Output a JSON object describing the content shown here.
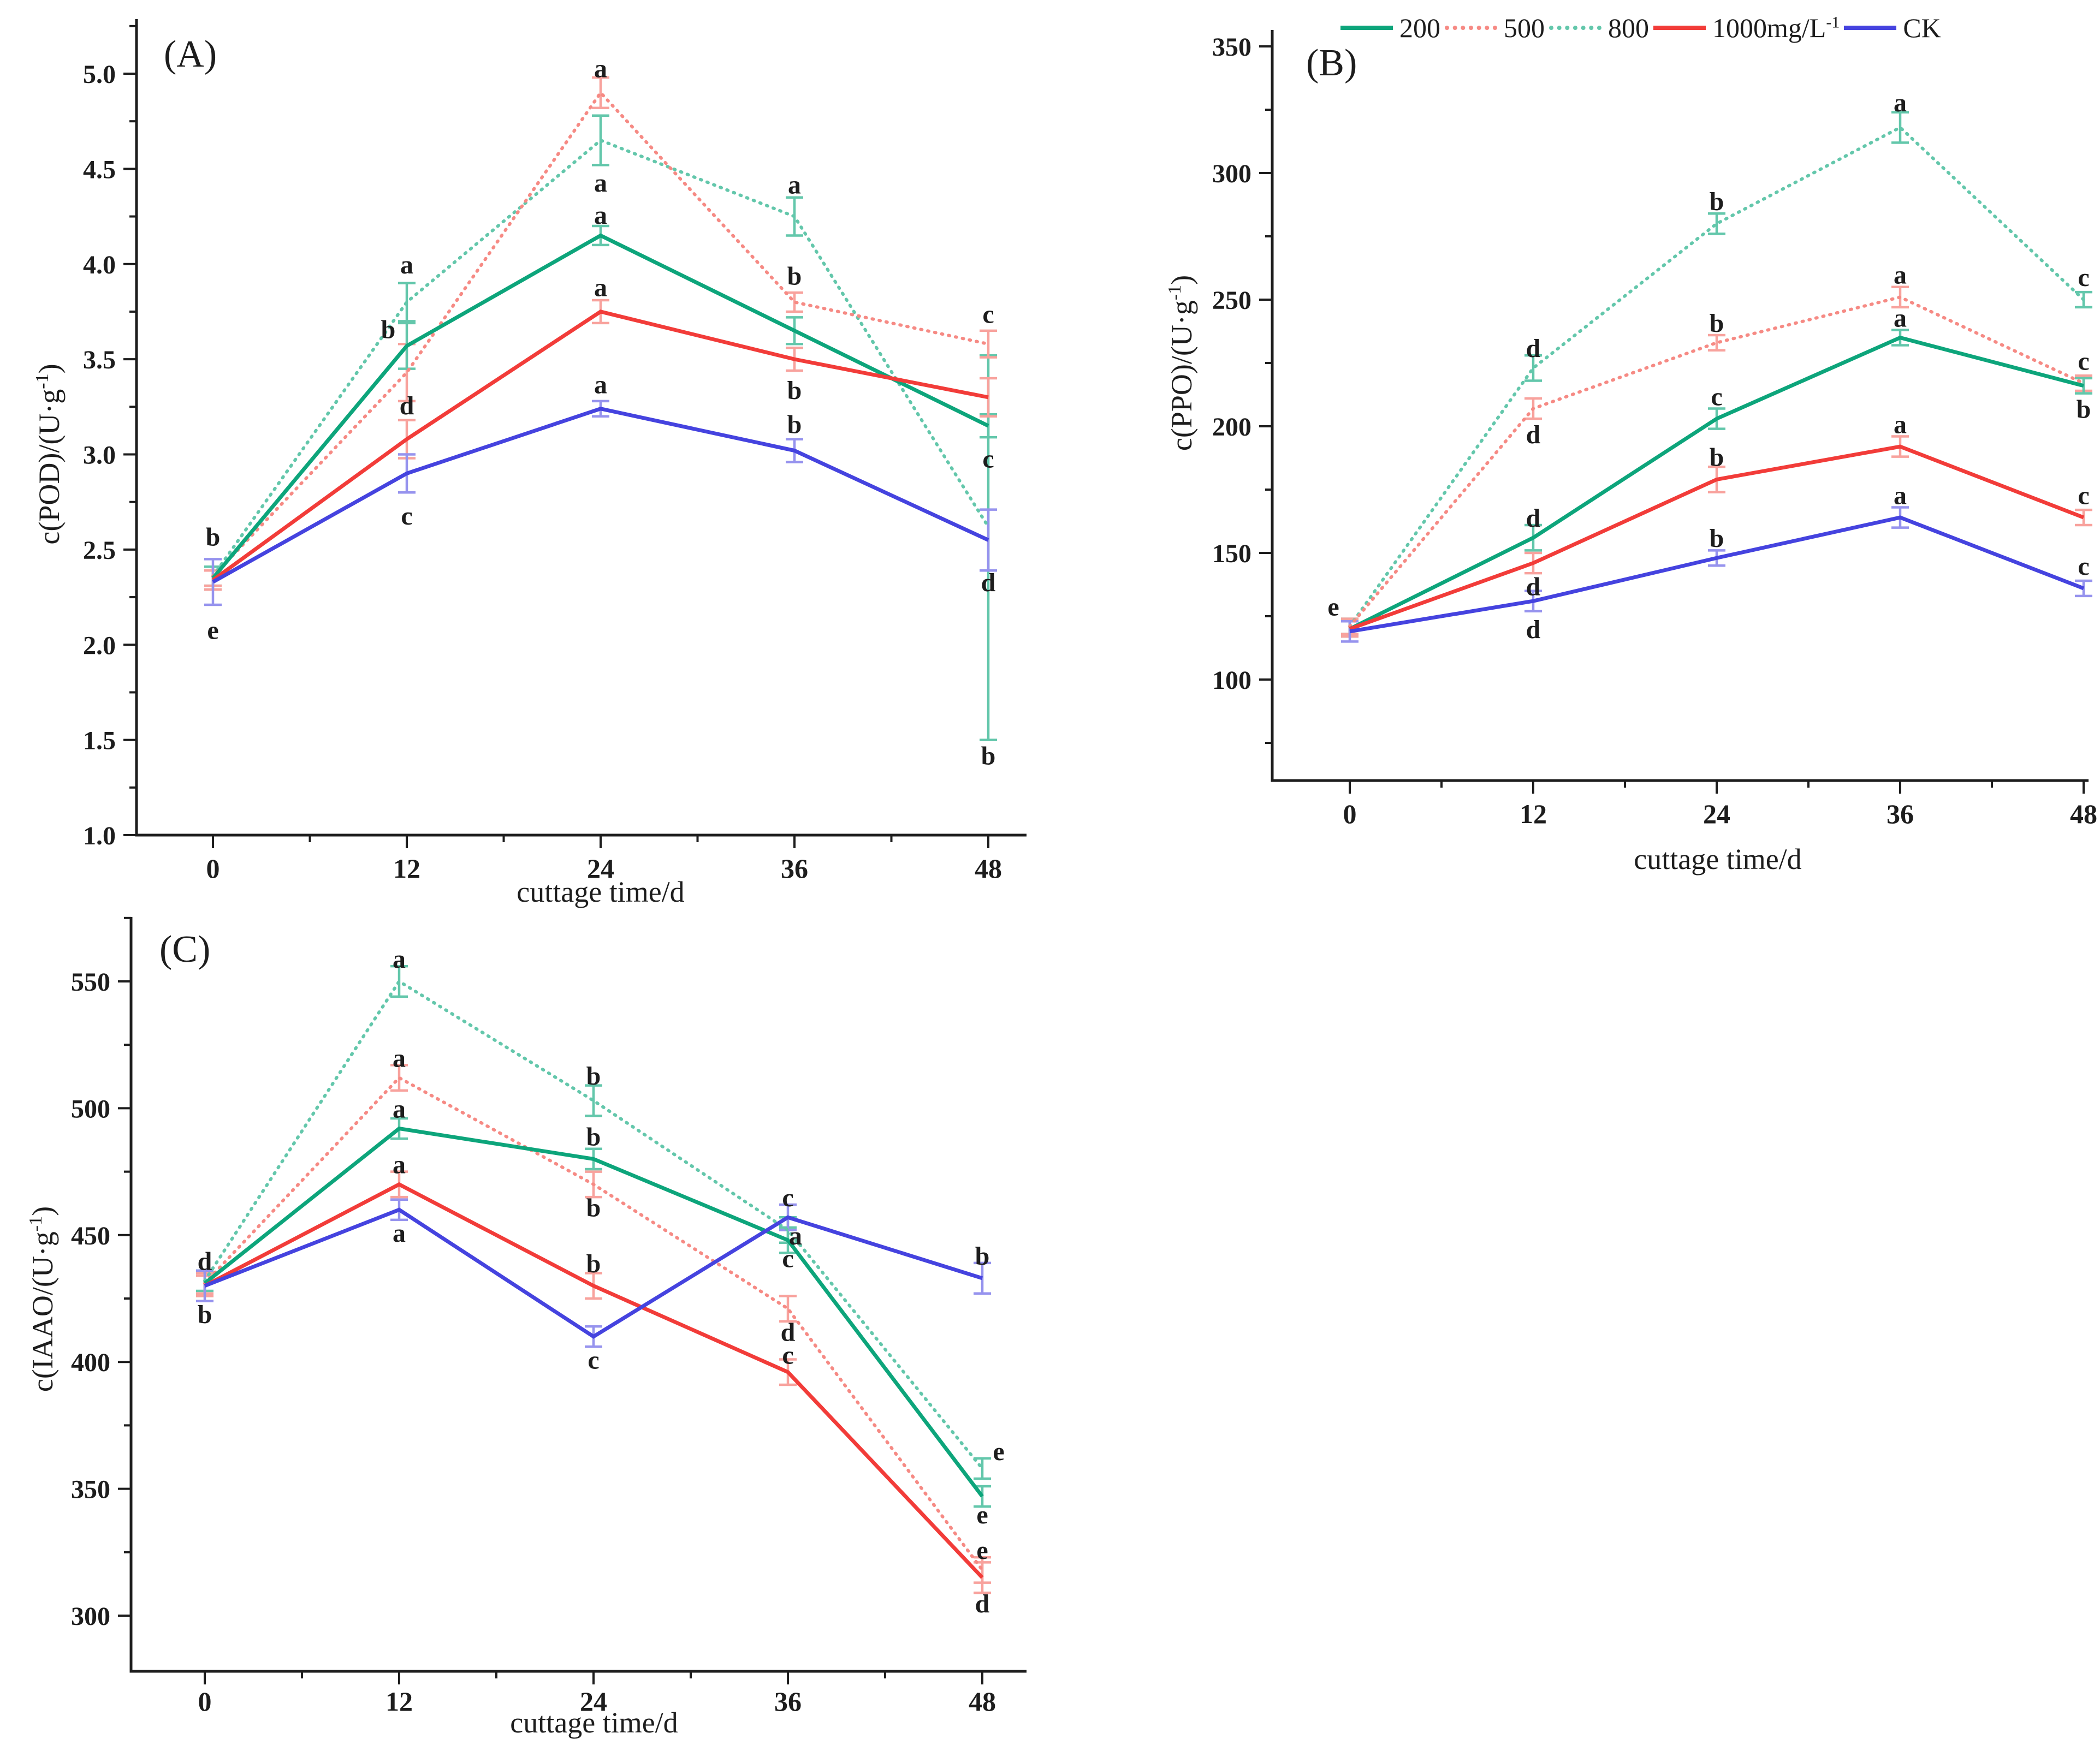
{
  "figure": {
    "background": "#ffffff",
    "xlabel_shared": "cuttage time/d"
  },
  "colors": {
    "axis": "#1d1d1d",
    "green": "#0da57b",
    "green_light": "#63c7ab",
    "red": "#f23c39",
    "red_light": "#f68a84",
    "red_err": "#f8a29d",
    "blue": "#4543df",
    "blue_light": "#9693ee"
  },
  "legend": {
    "items": [
      {
        "name": "200",
        "label": "200",
        "sup": "",
        "color": "green",
        "dash": "solid"
      },
      {
        "name": "500",
        "label": "500",
        "sup": "",
        "color": "red_light",
        "dash": "dotted"
      },
      {
        "name": "800",
        "label": "800",
        "sup": "",
        "color": "green_light",
        "dash": "dotted"
      },
      {
        "name": "1000",
        "label": "1000mg/L",
        "sup": "-1",
        "color": "red",
        "dash": "solid"
      },
      {
        "name": "CK",
        "label": "CK",
        "sup": "",
        "color": "blue",
        "dash": "solid"
      }
    ]
  },
  "chart_data": [
    {
      "id": "A",
      "type": "line",
      "panel_label": "(A)",
      "xlabel": "cuttage time/d",
      "ylabel_pre": "c(POD)/(U·g",
      "ylabel_sup": "-1",
      "ylabel_post": ")",
      "x_categories": [
        0,
        12,
        24,
        36,
        48
      ],
      "y_axis": {
        "min": 1.0,
        "max": 5.0,
        "major_step": 0.5,
        "minor_step": 0.25,
        "decimals": 1
      },
      "legend_position": "none",
      "grid": false,
      "series": [
        {
          "name": "800",
          "color": "green_light",
          "err_color": "green_light",
          "dash": "dotted",
          "values": [
            2.36,
            3.8,
            4.65,
            4.25,
            2.62
          ],
          "errors": [
            [
              0.05,
              0.05
            ],
            [
              0.1,
              0.1
            ],
            [
              0.13,
              0.13
            ],
            [
              0.1,
              0.1
            ],
            [
              1.12,
              0.9
            ]
          ]
        },
        {
          "name": "500",
          "color": "red_light",
          "err_color": "red_err",
          "dash": "dotted",
          "values": [
            2.36,
            3.43,
            4.9,
            3.8,
            3.58
          ],
          "errors": [
            [
              0.05,
              0.05
            ],
            [
              0.15,
              0.15
            ],
            [
              0.08,
              0.08
            ],
            [
              0.05,
              0.05
            ],
            [
              0.07,
              0.07
            ]
          ]
        },
        {
          "name": "200",
          "color": "green",
          "err_color": "green_light",
          "dash": "solid",
          "values": [
            2.35,
            3.57,
            4.15,
            3.65,
            3.15
          ],
          "errors": [
            [
              0.06,
              0.06
            ],
            [
              0.12,
              0.12
            ],
            [
              0.05,
              0.05
            ],
            [
              0.07,
              0.07
            ],
            [
              0.06,
              0.06
            ]
          ]
        },
        {
          "name": "1000",
          "color": "red",
          "err_color": "red_err",
          "dash": "solid",
          "values": [
            2.34,
            3.08,
            3.75,
            3.5,
            3.3
          ],
          "errors": [
            [
              0.05,
              0.05
            ],
            [
              0.1,
              0.1
            ],
            [
              0.06,
              0.06
            ],
            [
              0.06,
              0.06
            ],
            [
              0.1,
              0.1
            ]
          ]
        },
        {
          "name": "CK",
          "color": "blue",
          "err_color": "blue_light",
          "dash": "solid",
          "values": [
            2.33,
            2.9,
            3.24,
            3.02,
            2.55
          ],
          "errors": [
            [
              0.12,
              0.12
            ],
            [
              0.1,
              0.1
            ],
            [
              0.04,
              0.04
            ],
            [
              0.06,
              0.06
            ],
            [
              0.16,
              0.16
            ]
          ]
        }
      ],
      "sig_labels": [
        {
          "xi": 0,
          "y": 2.57,
          "t": "b",
          "dx": 0
        },
        {
          "xi": 0,
          "y": 2.08,
          "t": "e",
          "dx": 0
        },
        {
          "xi": 1,
          "y": 4.0,
          "t": "a",
          "dx": 0
        },
        {
          "xi": 1,
          "y": 3.66,
          "t": "b",
          "dx": -34
        },
        {
          "xi": 1,
          "y": 3.26,
          "t": "d",
          "dx": 0
        },
        {
          "xi": 1,
          "y": 2.68,
          "t": "c",
          "dx": 0
        },
        {
          "xi": 2,
          "y": 5.03,
          "t": "a",
          "dx": 0
        },
        {
          "xi": 2,
          "y": 4.43,
          "t": "a",
          "dx": 0
        },
        {
          "xi": 2,
          "y": 4.26,
          "t": "a",
          "dx": 0
        },
        {
          "xi": 2,
          "y": 3.88,
          "t": "a",
          "dx": 0
        },
        {
          "xi": 2,
          "y": 3.37,
          "t": "a",
          "dx": 0
        },
        {
          "xi": 3,
          "y": 4.42,
          "t": "a",
          "dx": 0
        },
        {
          "xi": 3,
          "y": 3.94,
          "t": "b",
          "dx": 0
        },
        {
          "xi": 3,
          "y": 3.34,
          "t": "b",
          "dx": 0
        },
        {
          "xi": 3,
          "y": 3.16,
          "t": "b",
          "dx": 0
        },
        {
          "xi": 4,
          "y": 3.74,
          "t": "c",
          "dx": 0
        },
        {
          "xi": 4,
          "y": 2.98,
          "t": "c",
          "dx": 0
        },
        {
          "xi": 4,
          "y": 2.33,
          "t": "d",
          "dx": 0
        },
        {
          "xi": 4,
          "y": 1.42,
          "t": "b",
          "dx": 0
        }
      ]
    },
    {
      "id": "B",
      "type": "line",
      "panel_label": "(B)",
      "xlabel": "cuttage time/d",
      "ylabel_pre": "c(PPO)/(U·g",
      "ylabel_sup": "-1",
      "ylabel_post": ")",
      "x_categories": [
        0,
        12,
        24,
        36,
        48
      ],
      "y_axis": {
        "min": 100,
        "max": 350,
        "major_step": 50,
        "minor_step": 25,
        "decimals": 0
      },
      "legend_position": "top",
      "grid": false,
      "series": [
        {
          "name": "800",
          "color": "green_light",
          "err_color": "green_light",
          "dash": "dotted",
          "values": [
            121,
            223,
            280,
            318,
            250
          ],
          "errors": [
            [
              3,
              3
            ],
            [
              5,
              5
            ],
            [
              4,
              4
            ],
            [
              6,
              6
            ],
            [
              3,
              3
            ]
          ]
        },
        {
          "name": "500",
          "color": "red_light",
          "err_color": "red_err",
          "dash": "dotted",
          "values": [
            121,
            207,
            233,
            251,
            217
          ],
          "errors": [
            [
              3,
              3
            ],
            [
              4,
              4
            ],
            [
              3,
              3
            ],
            [
              4,
              4
            ],
            [
              3,
              3
            ]
          ]
        },
        {
          "name": "200",
          "color": "green",
          "err_color": "green_light",
          "dash": "solid",
          "values": [
            120,
            156,
            203,
            235,
            216
          ],
          "errors": [
            [
              3,
              3
            ],
            [
              5,
              5
            ],
            [
              4,
              4
            ],
            [
              3,
              3
            ],
            [
              3,
              3
            ]
          ]
        },
        {
          "name": "1000",
          "color": "red",
          "err_color": "red_err",
          "dash": "solid",
          "values": [
            120,
            146,
            179,
            192,
            164
          ],
          "errors": [
            [
              3,
              3
            ],
            [
              4,
              4
            ],
            [
              5,
              5
            ],
            [
              4,
              4
            ],
            [
              3,
              3
            ]
          ]
        },
        {
          "name": "CK",
          "color": "blue",
          "err_color": "blue_light",
          "dash": "solid",
          "values": [
            119,
            131,
            148,
            164,
            136
          ],
          "errors": [
            [
              4,
              4
            ],
            [
              4,
              4
            ],
            [
              3,
              3
            ],
            [
              4,
              4
            ],
            [
              3,
              3
            ]
          ]
        }
      ],
      "sig_labels": [
        {
          "xi": 0,
          "y": 129,
          "t": "e",
          "dx": -30
        },
        {
          "xi": 1,
          "y": 231,
          "t": "d",
          "dx": 0
        },
        {
          "xi": 1,
          "y": 197,
          "t": "d",
          "dx": 0
        },
        {
          "xi": 1,
          "y": 164,
          "t": "d",
          "dx": 0
        },
        {
          "xi": 1,
          "y": 137,
          "t": "d",
          "dx": 0
        },
        {
          "xi": 1,
          "y": 120,
          "t": "d",
          "dx": 0
        },
        {
          "xi": 2,
          "y": 289,
          "t": "b",
          "dx": 0
        },
        {
          "xi": 2,
          "y": 241,
          "t": "b",
          "dx": 0
        },
        {
          "xi": 2,
          "y": 212,
          "t": "c",
          "dx": 0
        },
        {
          "xi": 2,
          "y": 188,
          "t": "b",
          "dx": 0
        },
        {
          "xi": 2,
          "y": 156,
          "t": "b",
          "dx": 0
        },
        {
          "xi": 3,
          "y": 328,
          "t": "a",
          "dx": 0
        },
        {
          "xi": 3,
          "y": 260,
          "t": "a",
          "dx": 0
        },
        {
          "xi": 3,
          "y": 243,
          "t": "a",
          "dx": 0
        },
        {
          "xi": 3,
          "y": 201,
          "t": "a",
          "dx": 0
        },
        {
          "xi": 3,
          "y": 173,
          "t": "a",
          "dx": 0
        },
        {
          "xi": 4,
          "y": 259,
          "t": "c",
          "dx": 0
        },
        {
          "xi": 4,
          "y": 226,
          "t": "c",
          "dx": 0
        },
        {
          "xi": 4,
          "y": 207,
          "t": "b",
          "dx": 0
        },
        {
          "xi": 4,
          "y": 173,
          "t": "c",
          "dx": 0
        },
        {
          "xi": 4,
          "y": 145,
          "t": "c",
          "dx": 0
        }
      ]
    },
    {
      "id": "C",
      "type": "line",
      "panel_label": "(C)",
      "xlabel": "cuttage time/d",
      "ylabel_pre": "c(IAAO/(U·g",
      "ylabel_sup": "-1",
      "ylabel_post": ")",
      "x_categories": [
        0,
        12,
        24,
        36,
        48
      ],
      "y_axis": {
        "min": 300,
        "max": 550,
        "major_step": 50,
        "minor_step": 25,
        "decimals": 0
      },
      "legend_position": "none",
      "grid": false,
      "series": [
        {
          "name": "800",
          "color": "green_light",
          "err_color": "green_light",
          "dash": "dotted",
          "values": [
            432,
            550,
            503,
            452,
            358
          ],
          "errors": [
            [
              4,
              4
            ],
            [
              6,
              6
            ],
            [
              6,
              6
            ],
            [
              5,
              5
            ],
            [
              4,
              4
            ]
          ]
        },
        {
          "name": "500",
          "color": "red_light",
          "err_color": "red_err",
          "dash": "dotted",
          "values": [
            431,
            512,
            470,
            421,
            318
          ],
          "errors": [
            [
              4,
              4
            ],
            [
              5,
              5
            ],
            [
              5,
              5
            ],
            [
              5,
              5
            ],
            [
              5,
              5
            ]
          ]
        },
        {
          "name": "200",
          "color": "green",
          "err_color": "green_light",
          "dash": "solid",
          "values": [
            431,
            492,
            480,
            448,
            347
          ],
          "errors": [
            [
              5,
              5
            ],
            [
              4,
              4
            ],
            [
              4,
              4
            ],
            [
              5,
              5
            ],
            [
              4,
              4
            ]
          ]
        },
        {
          "name": "1000",
          "color": "red",
          "err_color": "red_err",
          "dash": "solid",
          "values": [
            430,
            470,
            430,
            396,
            315
          ],
          "errors": [
            [
              4,
              4
            ],
            [
              5,
              5
            ],
            [
              5,
              5
            ],
            [
              5,
              5
            ],
            [
              6,
              6
            ]
          ]
        },
        {
          "name": "CK",
          "color": "blue",
          "err_color": "blue_light",
          "dash": "solid",
          "values": [
            430,
            460,
            410,
            457,
            433
          ],
          "errors": [
            [
              6,
              6
            ],
            [
              4,
              4
            ],
            [
              4,
              4
            ],
            [
              5,
              5
            ],
            [
              6,
              6
            ]
          ]
        }
      ],
      "sig_labels": [
        {
          "xi": 0,
          "y": 440,
          "t": "d",
          "dx": 0
        },
        {
          "xi": 0,
          "y": 419,
          "t": "b",
          "dx": 0
        },
        {
          "xi": 1,
          "y": 559,
          "t": "a",
          "dx": 0
        },
        {
          "xi": 1,
          "y": 520,
          "t": "a",
          "dx": 0
        },
        {
          "xi": 1,
          "y": 500,
          "t": "a",
          "dx": 0
        },
        {
          "xi": 1,
          "y": 478,
          "t": "a",
          "dx": 0
        },
        {
          "xi": 1,
          "y": 451,
          "t": "a",
          "dx": 0
        },
        {
          "xi": 2,
          "y": 513,
          "t": "b",
          "dx": 0
        },
        {
          "xi": 2,
          "y": 489,
          "t": "b",
          "dx": 0
        },
        {
          "xi": 2,
          "y": 461,
          "t": "b",
          "dx": 0
        },
        {
          "xi": 2,
          "y": 439,
          "t": "b",
          "dx": 0
        },
        {
          "xi": 2,
          "y": 401,
          "t": "c",
          "dx": 0
        },
        {
          "xi": 3,
          "y": 465,
          "t": "c",
          "dx": 0
        },
        {
          "xi": 3,
          "y": 450,
          "t": "a",
          "dx": 14
        },
        {
          "xi": 3,
          "y": 441,
          "t": "c",
          "dx": 0
        },
        {
          "xi": 3,
          "y": 412,
          "t": "d",
          "dx": 0
        },
        {
          "xi": 3,
          "y": 403,
          "t": "c",
          "dx": 0
        },
        {
          "xi": 4,
          "y": 442,
          "t": "b",
          "dx": 0
        },
        {
          "xi": 4,
          "y": 365,
          "t": "e",
          "dx": 30
        },
        {
          "xi": 4,
          "y": 340,
          "t": "e",
          "dx": 0
        },
        {
          "xi": 4,
          "y": 326,
          "t": "e",
          "dx": 0
        },
        {
          "xi": 4,
          "y": 305,
          "t": "d",
          "dx": 0
        }
      ]
    }
  ]
}
